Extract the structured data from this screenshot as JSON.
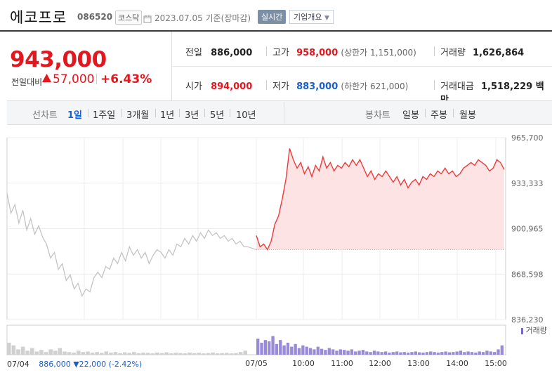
{
  "header": {
    "company": "에코프로",
    "code": "086520",
    "market": "코스닥",
    "date": "2023.07.05 기준(장마감)",
    "realtime_label": "실시간",
    "company_info_label": "기업개요"
  },
  "price": {
    "current": "943,000",
    "change_label": "전일대비",
    "change_amount": "57,000",
    "change_pct": "+6.43%"
  },
  "stats": {
    "prev_label": "전일",
    "prev": "886,000",
    "high_label": "고가",
    "high": "958,000",
    "upper_limit": "(상한가 1,151,000)",
    "volume_label": "거래량",
    "volume": "1,626,864",
    "open_label": "시가",
    "open": "894,000",
    "low_label": "저가",
    "low": "883,000",
    "lower_limit": "(하한가 621,000)",
    "value_label": "거래대금",
    "value": "1,518,229 백만"
  },
  "periods": {
    "line_label": "선차트",
    "items": [
      "1일",
      "1주일",
      "3개월",
      "1년",
      "3년",
      "5년",
      "10년"
    ],
    "selected": "1일",
    "candle_label": "봉차트",
    "candle_items": [
      "일봉",
      "주봉",
      "월봉"
    ]
  },
  "chart_data": {
    "type": "line",
    "ylim": [
      836230,
      965700
    ],
    "yticks": [
      "965,700",
      "933,333",
      "900,965",
      "868,598",
      "836,230"
    ],
    "xticks": [
      "07/04",
      "07/05",
      "10:00",
      "11:00",
      "12:00",
      "13:00",
      "14:00",
      "15:00"
    ],
    "baseline": 886000,
    "volume_legend": "거래량",
    "prev_day_label": "07/04",
    "prev_day_close": "886,000",
    "prev_day_change": "▼22,000",
    "prev_day_pct": "(-2.42%)",
    "prev_day_series": [
      926000,
      912000,
      918000,
      905000,
      914000,
      900000,
      908000,
      897000,
      903000,
      895000,
      890000,
      880000,
      884000,
      872000,
      876000,
      864000,
      868000,
      858000,
      862000,
      853000,
      858000,
      856000,
      866000,
      870000,
      866000,
      874000,
      872000,
      880000,
      876000,
      884000,
      878000,
      888000,
      882000,
      886000,
      880000,
      884000,
      876000,
      882000,
      886000,
      884000,
      880000,
      886000,
      882000,
      890000,
      888000,
      894000,
      890000,
      896000,
      892000,
      898000,
      894000,
      900000,
      896000,
      898000,
      894000,
      896000,
      892000,
      894000,
      890000,
      892000,
      888000,
      888000
    ],
    "today_series": [
      896000,
      888000,
      890000,
      886000,
      892000,
      904000,
      910000,
      922000,
      936000,
      958000,
      950000,
      944000,
      948000,
      940000,
      945000,
      938000,
      946000,
      942000,
      952000,
      944000,
      948000,
      942000,
      946000,
      944000,
      948000,
      945000,
      950000,
      946000,
      950000,
      944000,
      938000,
      942000,
      936000,
      940000,
      938000,
      942000,
      938000,
      934000,
      938000,
      932000,
      936000,
      930000,
      934000,
      936000,
      932000,
      938000,
      936000,
      940000,
      938000,
      942000,
      940000,
      944000,
      940000,
      942000,
      938000,
      940000,
      944000,
      946000,
      948000,
      946000,
      950000,
      948000,
      946000,
      942000,
      944000,
      950000,
      948000,
      943000
    ],
    "prev_day_volume": [
      0.45,
      0.35,
      0.2,
      0.3,
      0.15,
      0.25,
      0.12,
      0.18,
      0.1,
      0.2,
      0.15,
      0.25,
      0.12,
      0.1,
      0.08,
      0.15,
      0.1,
      0.12,
      0.08,
      0.1,
      0.07,
      0.12,
      0.08,
      0.1,
      0.06,
      0.09,
      0.07,
      0.1,
      0.06,
      0.08,
      0.07,
      0.05,
      0.08,
      0.06,
      0.09,
      0.05,
      0.07,
      0.06,
      0.05,
      0.08,
      0.06,
      0.07,
      0.05,
      0.06,
      0.08,
      0.05,
      0.06,
      0.07,
      0.05,
      0.06,
      0.1,
      0.15
    ],
    "today_volume": [
      0.6,
      0.45,
      0.55,
      0.5,
      0.7,
      0.4,
      0.55,
      0.35,
      0.45,
      0.3,
      0.4,
      0.25,
      0.35,
      0.3,
      0.25,
      0.2,
      0.3,
      0.22,
      0.18,
      0.25,
      0.2,
      0.15,
      0.2,
      0.18,
      0.15,
      0.2,
      0.12,
      0.15,
      0.18,
      0.12,
      0.1,
      0.15,
      0.12,
      0.1,
      0.12,
      0.08,
      0.1,
      0.12,
      0.09,
      0.1,
      0.08,
      0.1,
      0.12,
      0.09,
      0.08,
      0.1,
      0.12,
      0.1,
      0.08,
      0.1,
      0.12,
      0.09,
      0.1,
      0.12,
      0.15,
      0.1,
      0.12,
      0.1,
      0.08,
      0.12,
      0.1,
      0.15,
      0.12,
      0.1,
      0.2,
      0.35
    ]
  }
}
